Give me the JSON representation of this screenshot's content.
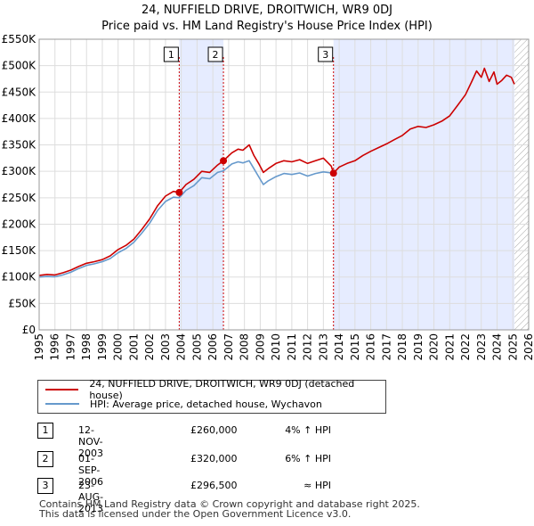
{
  "title_line1": "24, NUFFIELD DRIVE, DROITWICH, WR9 0DJ",
  "title_line2": "Price paid vs. HM Land Registry's House Price Index (HPI)",
  "chart_data": {
    "type": "line",
    "xlim": [
      1995,
      2026
    ],
    "ylim": [
      0,
      550000
    ],
    "yticks": [
      0,
      50000,
      100000,
      150000,
      200000,
      250000,
      300000,
      350000,
      400000,
      450000,
      500000,
      550000
    ],
    "ytick_labels": [
      "£0",
      "£50K",
      "£100K",
      "£150K",
      "£200K",
      "£250K",
      "£300K",
      "£350K",
      "£400K",
      "£450K",
      "£500K",
      "£550K"
    ],
    "xticks": [
      1995,
      1996,
      1997,
      1998,
      1999,
      2000,
      2001,
      2002,
      2003,
      2004,
      2005,
      2006,
      2007,
      2008,
      2009,
      2010,
      2011,
      2012,
      2013,
      2014,
      2015,
      2016,
      2017,
      2018,
      2019,
      2020,
      2021,
      2022,
      2023,
      2024,
      2025,
      2026
    ],
    "shaded_regions": [
      [
        2003.87,
        2006.67
      ],
      [
        2013.64,
        2025.1
      ]
    ],
    "forecast_hatch_start": 2025.1,
    "colors": {
      "property": "#cc0000",
      "hpi": "#6699cc",
      "marker_line": "#cc0000",
      "shade": "#e6ecff"
    },
    "series": [
      {
        "name": "24, NUFFIELD DRIVE, DROITWICH, WR9 0DJ (detached house)",
        "color": "#cc0000",
        "x": [
          1995.0,
          1995.5,
          1996.0,
          1996.5,
          1997.0,
          1997.5,
          1998.0,
          1998.5,
          1999.0,
          1999.5,
          2000.0,
          2000.5,
          2001.0,
          2001.5,
          2002.0,
          2002.5,
          2003.0,
          2003.5,
          2003.87,
          2004.3,
          2004.8,
          2005.3,
          2005.8,
          2006.3,
          2006.67,
          2007.2,
          2007.6,
          2007.9,
          2008.3,
          2008.6,
          2008.9,
          2009.2,
          2009.5,
          2010.0,
          2010.5,
          2011.0,
          2011.5,
          2012.0,
          2012.5,
          2013.0,
          2013.5,
          2013.64,
          2014.0,
          2014.5,
          2015.0,
          2015.5,
          2016.0,
          2016.5,
          2017.0,
          2017.5,
          2018.0,
          2018.5,
          2019.0,
          2019.5,
          2020.0,
          2020.5,
          2021.0,
          2021.5,
          2022.0,
          2022.4,
          2022.7,
          2023.0,
          2023.2,
          2023.5,
          2023.8,
          2024.0,
          2024.3,
          2024.6,
          2024.9,
          2025.1
        ],
        "values": [
          103000,
          105000,
          104000,
          108000,
          113000,
          120000,
          126000,
          129000,
          133000,
          140000,
          152000,
          160000,
          172000,
          190000,
          210000,
          235000,
          253000,
          262000,
          260000,
          275000,
          285000,
          300000,
          298000,
          312000,
          320000,
          335000,
          342000,
          340000,
          350000,
          330000,
          315000,
          298000,
          305000,
          315000,
          320000,
          318000,
          322000,
          315000,
          320000,
          325000,
          310000,
          296500,
          308000,
          315000,
          320000,
          330000,
          338000,
          345000,
          352000,
          360000,
          368000,
          380000,
          385000,
          383000,
          388000,
          395000,
          405000,
          425000,
          445000,
          470000,
          490000,
          478000,
          495000,
          470000,
          488000,
          465000,
          472000,
          482000,
          478000,
          465000
        ]
      },
      {
        "name": "HPI: Average price, detached house, Wychavon",
        "color": "#6699cc",
        "x": [
          1995.0,
          1995.5,
          1996.0,
          1996.5,
          1997.0,
          1997.5,
          1998.0,
          1998.5,
          1999.0,
          1999.5,
          2000.0,
          2000.5,
          2001.0,
          2001.5,
          2002.0,
          2002.5,
          2003.0,
          2003.5,
          2003.87,
          2004.3,
          2004.8,
          2005.3,
          2005.8,
          2006.3,
          2006.67,
          2007.2,
          2007.6,
          2007.9,
          2008.3,
          2008.6,
          2008.9,
          2009.2,
          2009.5,
          2010.0,
          2010.5,
          2011.0,
          2011.5,
          2012.0,
          2012.5,
          2013.0,
          2013.5,
          2013.64
        ],
        "values": [
          100000,
          101000,
          100500,
          104000,
          109000,
          116000,
          122000,
          125000,
          129000,
          135000,
          146000,
          154000,
          166000,
          183000,
          202000,
          226000,
          243000,
          251000,
          250000,
          264000,
          273000,
          288000,
          286000,
          298000,
          301000,
          314000,
          318000,
          316000,
          320000,
          305000,
          290000,
          275000,
          282000,
          290000,
          296000,
          294000,
          297000,
          291000,
          296000,
          299000,
          297000,
          296000
        ]
      }
    ],
    "sales": [
      {
        "label": "1",
        "x": 2003.87,
        "price": 260000
      },
      {
        "label": "2",
        "x": 2006.67,
        "price": 320000
      },
      {
        "label": "3",
        "x": 2013.64,
        "price": 296500
      }
    ]
  },
  "legend": {
    "property_label": "24, NUFFIELD DRIVE, DROITWICH, WR9 0DJ (detached house)",
    "hpi_label": "HPI: Average price, detached house, Wychavon"
  },
  "transactions": [
    {
      "num": "1",
      "date": "12-NOV-2003",
      "price": "£260,000",
      "hpi": "4% ↑ HPI"
    },
    {
      "num": "2",
      "date": "01-SEP-2006",
      "price": "£320,000",
      "hpi": "6% ↑ HPI"
    },
    {
      "num": "3",
      "date": "23-AUG-2013",
      "price": "£296,500",
      "hpi": "≈ HPI"
    }
  ],
  "footer_line1": "Contains HM Land Registry data © Crown copyright and database right 2025.",
  "footer_line2": "This data is licensed under the Open Government Licence v3.0."
}
